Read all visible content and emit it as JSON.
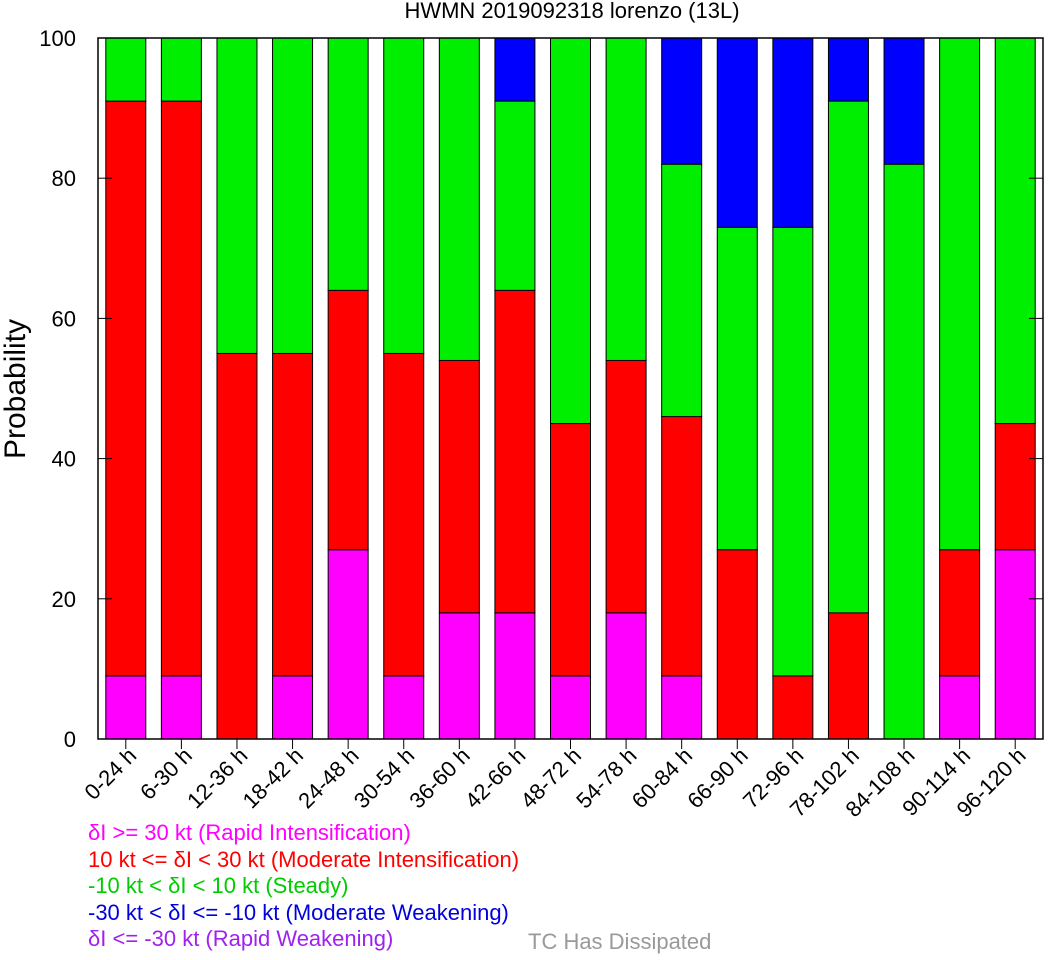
{
  "chart_data": {
    "type": "bar",
    "stacked": true,
    "title": "HWMN 2019092318 lorenzo (13L)",
    "ylabel": "Probability",
    "xlabel": "",
    "ylim": [
      0,
      100
    ],
    "yticks": [
      "0",
      "20",
      "40",
      "60",
      "80",
      "100"
    ],
    "grid": false,
    "legend_position": "bottom-left",
    "categories": [
      "0-24 h",
      "6-30 h",
      "12-36 h",
      "18-42 h",
      "24-48 h",
      "30-54 h",
      "36-60 h",
      "42-66 h",
      "48-72 h",
      "54-78 h",
      "60-84 h",
      "66-90 h",
      "72-96 h",
      "78-102 h",
      "84-108 h",
      "90-114 h",
      "96-120 h"
    ],
    "series": [
      {
        "name": "δI <= -30 kt (Rapid Weakening)",
        "color": "#a020f0",
        "values": [
          0,
          0,
          0,
          0,
          0,
          0,
          0,
          0,
          0,
          0,
          0,
          0,
          0,
          0,
          0,
          0,
          0
        ]
      },
      {
        "name": "δI >= 30 kt (Rapid Intensification)",
        "color": "#ff00ff",
        "values": [
          9,
          9,
          0,
          9,
          27,
          9,
          18,
          18,
          9,
          18,
          9,
          0,
          0,
          0,
          0,
          9,
          27
        ]
      },
      {
        "name": "10 kt <= δI < 30 kt (Moderate Intensification)",
        "color": "#ff0000",
        "values": [
          82,
          82,
          55,
          46,
          37,
          46,
          36,
          46,
          36,
          36,
          37,
          27,
          9,
          18,
          0,
          18,
          18
        ]
      },
      {
        "name": "-10 kt < δI < 10 kt (Steady)",
        "color": "#00ee00",
        "values": [
          9,
          9,
          45,
          45,
          36,
          45,
          46,
          27,
          55,
          46,
          36,
          46,
          64,
          73,
          82,
          73,
          55
        ]
      },
      {
        "name": "-30 kt < δI <= -10 kt (Moderate Weakening)",
        "color": "#0000ff",
        "values": [
          0,
          0,
          0,
          0,
          0,
          0,
          0,
          9,
          0,
          0,
          18,
          27,
          27,
          9,
          18,
          0,
          0
        ]
      }
    ],
    "legend_note": {
      "text": "TC Has Dissipated",
      "color": "#999999"
    }
  },
  "legend": [
    {
      "text": "δI >= 30 kt (Rapid Intensification)",
      "color": "#ff00ff"
    },
    {
      "text": "10 kt <= δI < 30 kt (Moderate Intensification)",
      "color": "#ff0000"
    },
    {
      "text": "-10 kt < δI < 10 kt (Steady)",
      "color": "#00cc00"
    },
    {
      "text": "-30 kt < δI <= -10 kt (Moderate Weakening)",
      "color": "#0000dd"
    },
    {
      "text": "δI <= -30 kt (Rapid Weakening)",
      "color": "#a020f0"
    }
  ]
}
